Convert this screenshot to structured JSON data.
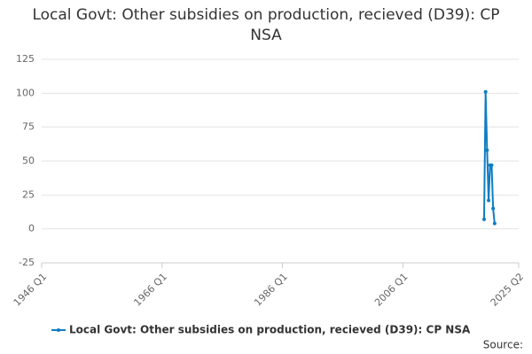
{
  "chart_data": {
    "type": "line",
    "title": "Local Govt: Other subsidies on production, recieved (D39): CP NSA",
    "x": [
      "2019 Q3",
      "2019 Q4",
      "2020 Q1",
      "2020 Q2",
      "2020 Q3",
      "2020 Q4",
      "2021 Q1",
      "2021 Q2"
    ],
    "series": [
      {
        "name": "Local Govt: Other subsidies on production, recieved (D39): CP NSA",
        "color": "#0f7dc2",
        "values": [
          7,
          101,
          58,
          21,
          47,
          47,
          15,
          4
        ]
      }
    ],
    "xlim": [
      "1946 Q1",
      "2025 Q2"
    ],
    "xticks": [
      "1946 Q1",
      "1966 Q1",
      "1986 Q1",
      "2006 Q1",
      "2025 Q2"
    ],
    "ylim": [
      -25,
      125
    ],
    "yticks": [
      -25,
      0,
      25,
      50,
      75,
      100,
      125
    ],
    "grid": true,
    "legend": "bottom",
    "source": "Source:"
  }
}
